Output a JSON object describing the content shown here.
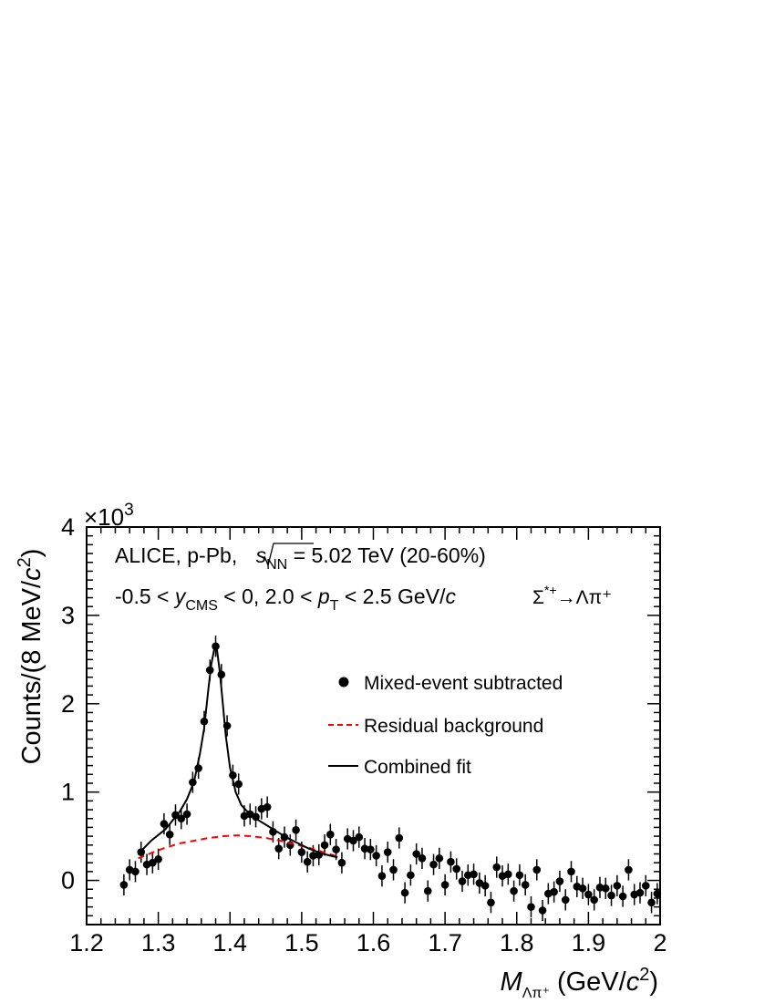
{
  "chart_data": {
    "type": "scatter",
    "multiplier_label": "×10",
    "multiplier_exp": "3",
    "ylabel": {
      "main": "Counts/(8 MeV/",
      "italic": "c",
      "sup": "2",
      "tail": ")"
    },
    "xlabel": {
      "italic": "M",
      "sub": "Λπ⁺",
      "main": " (GeV/",
      "italic2": "c",
      "sup": "2",
      "tail": ")"
    },
    "xlim": [
      1.2,
      2.0
    ],
    "ylim": [
      -0.5,
      4.0
    ],
    "x_ticks": [
      "1.2",
      "1.3",
      "1.4",
      "1.5",
      "1.6",
      "1.7",
      "1.8",
      "1.9",
      "2"
    ],
    "y_ticks": [
      "0",
      "1",
      "2",
      "3",
      "4"
    ],
    "annotation_line1": {
      "pre": "ALICE, p-Pb, ",
      "s": "s",
      "sub": "NN",
      "post": " = 5.02 TeV (20-60%)"
    },
    "annotation_line2": {
      "pre": "-0.5 < ",
      "y": "y",
      "ysub": "CMS",
      "mid": " < 0, 2.0 < ",
      "p": "p",
      "psub": "T",
      "post": " < 2.5 GeV/",
      "c": "c"
    },
    "decay": {
      "sigma": "Σ",
      "sup": "*+",
      "arrow": "→Λπ⁺"
    },
    "legend": {
      "position": "upper-right",
      "entries": [
        "Mixed-event subtracted",
        "Residual background",
        "Combined fit"
      ]
    },
    "series": [
      {
        "name": "Mixed-event subtracted",
        "style": "points",
        "color": "#000000",
        "x": [
          1.252,
          1.26,
          1.268,
          1.276,
          1.284,
          1.292,
          1.3,
          1.308,
          1.316,
          1.324,
          1.332,
          1.34,
          1.348,
          1.356,
          1.364,
          1.372,
          1.38,
          1.388,
          1.396,
          1.404,
          1.412,
          1.42,
          1.428,
          1.436,
          1.444,
          1.452,
          1.46,
          1.468,
          1.476,
          1.484,
          1.492,
          1.5,
          1.508,
          1.516,
          1.524,
          1.532,
          1.54,
          1.548,
          1.556,
          1.564,
          1.572,
          1.58,
          1.588,
          1.596,
          1.604,
          1.612,
          1.62,
          1.628,
          1.636,
          1.644,
          1.652,
          1.66,
          1.668,
          1.676,
          1.684,
          1.692,
          1.7,
          1.708,
          1.716,
          1.724,
          1.732,
          1.74,
          1.748,
          1.756,
          1.764,
          1.772,
          1.78,
          1.788,
          1.796,
          1.804,
          1.812,
          1.82,
          1.828,
          1.836,
          1.844,
          1.852,
          1.86,
          1.868,
          1.876,
          1.884,
          1.892,
          1.9,
          1.908,
          1.916,
          1.924,
          1.932,
          1.94,
          1.948,
          1.956,
          1.964,
          1.972,
          1.98,
          1.988,
          1.996
        ],
        "y": [
          -0.05,
          0.12,
          0.1,
          0.32,
          0.18,
          0.2,
          0.24,
          0.64,
          0.52,
          0.74,
          0.7,
          0.75,
          1.11,
          1.27,
          1.8,
          2.38,
          2.65,
          2.33,
          1.75,
          1.19,
          1.09,
          0.73,
          0.75,
          0.72,
          0.81,
          0.83,
          0.55,
          0.36,
          0.49,
          0.4,
          0.57,
          0.32,
          0.21,
          0.28,
          0.29,
          0.4,
          0.52,
          0.35,
          0.2,
          0.47,
          0.45,
          0.49,
          0.36,
          0.35,
          0.28,
          0.05,
          0.32,
          0.12,
          0.48,
          -0.14,
          0.06,
          0.3,
          0.25,
          -0.12,
          0.18,
          0.25,
          -0.05,
          0.21,
          0.13,
          -0.01,
          0.06,
          0.07,
          -0.03,
          -0.06,
          -0.25,
          0.15,
          0.05,
          0.07,
          -0.12,
          0.06,
          -0.05,
          -0.3,
          0.12,
          -0.34,
          -0.15,
          -0.13,
          -0.01,
          -0.22,
          0.1,
          -0.07,
          -0.09,
          -0.16,
          -0.22,
          -0.08,
          -0.09,
          -0.17,
          -0.06,
          -0.18,
          0.12,
          -0.16,
          -0.14,
          -0.06,
          -0.25,
          -0.15
        ],
        "err": 0.12
      },
      {
        "name": "Residual background",
        "style": "dashed",
        "color": "#ff0000",
        "x": [
          1.272,
          1.29,
          1.31,
          1.33,
          1.35,
          1.37,
          1.39,
          1.41,
          1.43,
          1.45,
          1.47,
          1.49,
          1.51,
          1.53,
          1.55
        ],
        "y": [
          0.25,
          0.31,
          0.37,
          0.42,
          0.45,
          0.48,
          0.5,
          0.51,
          0.5,
          0.48,
          0.45,
          0.41,
          0.37,
          0.32,
          0.27
        ]
      },
      {
        "name": "Combined fit",
        "style": "solid",
        "color": "#000000",
        "x": [
          1.272,
          1.29,
          1.31,
          1.33,
          1.34,
          1.35,
          1.358,
          1.364,
          1.37,
          1.374,
          1.378,
          1.38,
          1.382,
          1.386,
          1.39,
          1.394,
          1.4,
          1.408,
          1.416,
          1.43,
          1.44,
          1.45,
          1.46,
          1.47,
          1.48,
          1.49,
          1.5,
          1.51,
          1.52,
          1.53,
          1.54,
          1.55
        ],
        "y": [
          0.3,
          0.45,
          0.58,
          0.78,
          0.92,
          1.12,
          1.43,
          1.72,
          2.18,
          2.45,
          2.62,
          2.65,
          2.6,
          2.35,
          2.0,
          1.65,
          1.28,
          1.0,
          0.85,
          0.73,
          0.68,
          0.63,
          0.58,
          0.53,
          0.48,
          0.44,
          0.4,
          0.36,
          0.33,
          0.3,
          0.28,
          0.26
        ]
      }
    ]
  }
}
